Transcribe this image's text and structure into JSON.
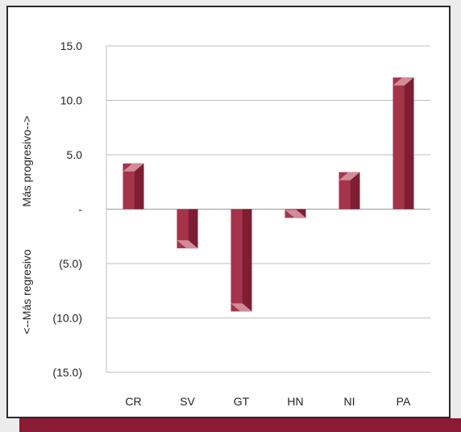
{
  "chart_data": {
    "type": "bar",
    "categories": [
      "CR",
      "SV",
      "GT",
      "HN",
      "NI",
      "PA"
    ],
    "values": [
      4.2,
      -3.6,
      -9.4,
      -0.8,
      3.4,
      12.1
    ],
    "ylim": [
      -15,
      15
    ],
    "yticks": [
      15,
      10,
      5,
      0,
      -5,
      -10,
      -15
    ],
    "ytick_labels": [
      "15.0",
      "10.0",
      "5.0",
      "-",
      "(5.0)",
      "(10.0)",
      "(15.0)"
    ],
    "ylabel_upper": "Más progresivo-->",
    "ylabel_lower": "<--Más regresivo",
    "grid": true,
    "legend": "none"
  },
  "colors": {
    "bar_face": "#a5344b",
    "bar_shade": "#7e1e33",
    "bar_light": "#d08c97",
    "grid": "#bfbfbf",
    "accent_bar": "#8b1a35"
  }
}
